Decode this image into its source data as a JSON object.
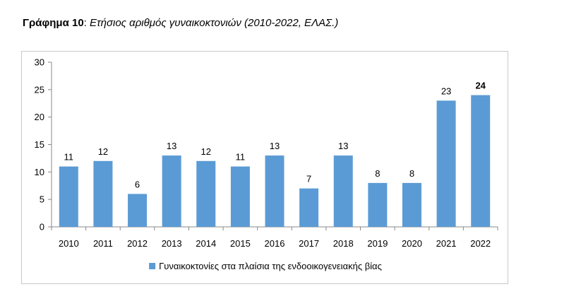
{
  "title": {
    "label": "Γράφημα 10",
    "separator": ":",
    "text": "Ετήσιος αριθμός γυναικοκτονιών (2010-2022, ΕΛΑΣ.)"
  },
  "chart_data": {
    "type": "bar",
    "categories": [
      "2010",
      "2011",
      "2012",
      "2013",
      "2014",
      "2015",
      "2016",
      "2017",
      "2018",
      "2019",
      "2020",
      "2021",
      "2022"
    ],
    "series": [
      {
        "name": "Γυναικοκτονίες στα πλαίσια της ενδοοικογενειακής βίας",
        "values": [
          11,
          12,
          6,
          13,
          12,
          11,
          13,
          7,
          13,
          8,
          8,
          23,
          24
        ],
        "color": "#5b9bd5"
      }
    ],
    "ylim": [
      0,
      30
    ],
    "yticks": [
      0,
      5,
      10,
      15,
      20,
      25,
      30
    ],
    "grid": false,
    "legend": "bottom",
    "highlight_last_label_bold": true
  }
}
